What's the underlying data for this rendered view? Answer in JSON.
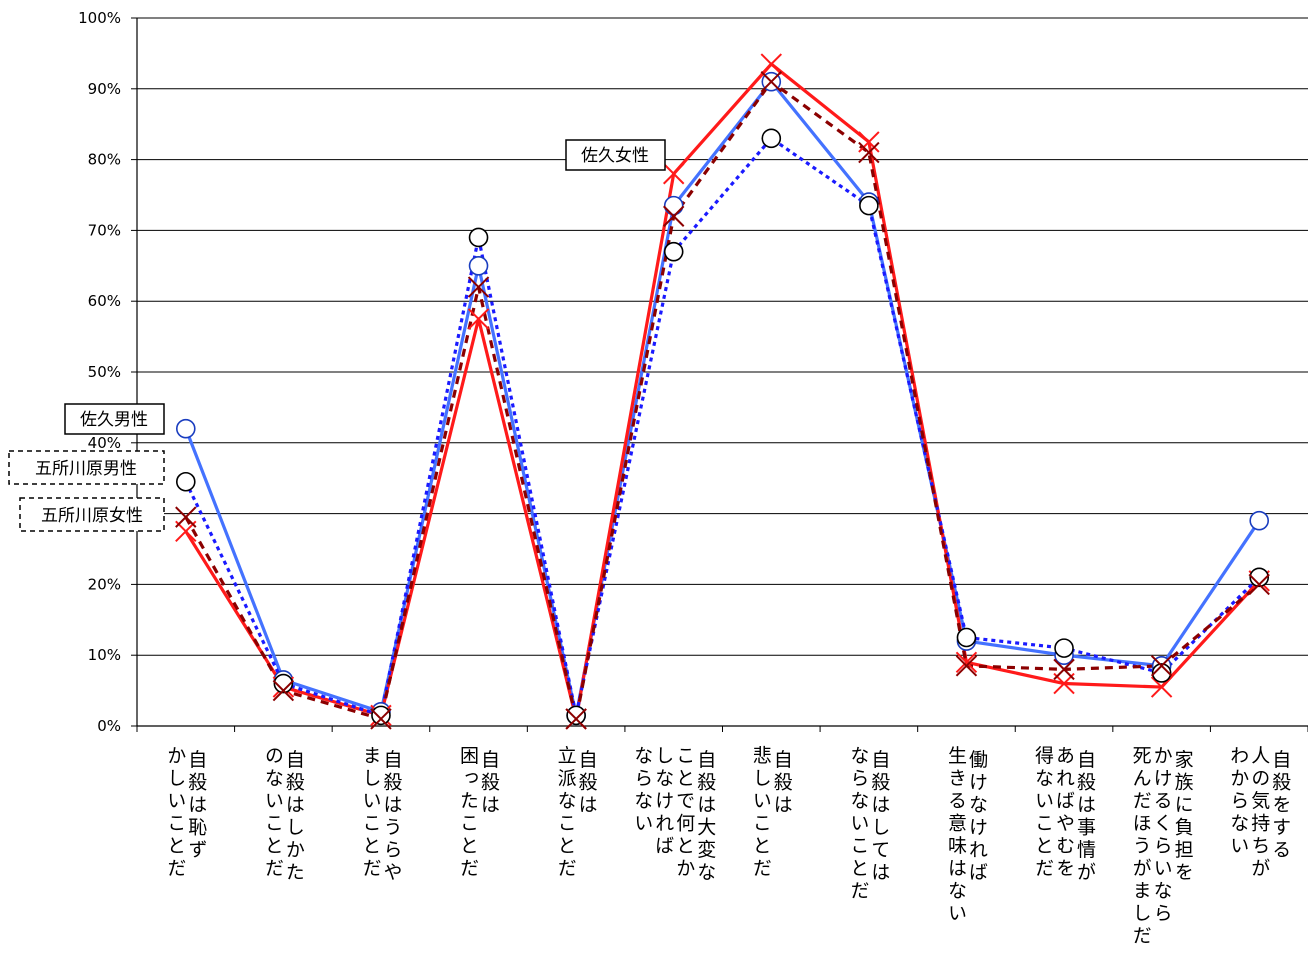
{
  "chart_data": {
    "type": "line",
    "title": "",
    "xlabel": "",
    "ylabel": "",
    "ylim": [
      0,
      100
    ],
    "y_tick_labels": [
      "0%",
      "10%",
      "20%",
      "30%",
      "40%",
      "50%",
      "60%",
      "70%",
      "80%",
      "90%",
      "100%"
    ],
    "grid": "horizontal",
    "categories": [
      [
        "自殺は恥ず",
        "かしいことだ"
      ],
      [
        "自殺はしかた",
        "のないことだ"
      ],
      [
        "自殺はうらや",
        "ましいことだ"
      ],
      [
        "自殺は",
        "困ったことだ"
      ],
      [
        "自殺は",
        "立派なことだ"
      ],
      [
        "自殺は大変な",
        "ことで何とか",
        "しなければ",
        "ならない"
      ],
      [
        "自殺は",
        "悲しいことだ"
      ],
      [
        "自殺はしては",
        "ならないことだ"
      ],
      [
        "働けなければ",
        "生きる意味はない"
      ],
      [
        "自殺は事情が",
        "あればやむを",
        "得ないことだ"
      ],
      [
        "家族に負担を",
        "かけるくらいなら",
        "死んだほうがましだ"
      ],
      [
        "自殺をする",
        "人の気持ちが",
        "わからない"
      ]
    ],
    "series": [
      {
        "name": "佐久男性",
        "color": "#4472ff",
        "dash": "solid",
        "marker": "circle",
        "values": [
          42,
          6.5,
          2,
          65,
          1.5,
          73.5,
          91,
          74,
          12,
          10,
          8.5,
          29
        ]
      },
      {
        "name": "佐久女性",
        "color": "#ff1a1a",
        "dash": "solid",
        "marker": "x",
        "values": [
          27.5,
          5.5,
          1.5,
          57.5,
          1,
          78,
          93.5,
          82.5,
          9,
          6,
          5.5,
          20.5
        ]
      },
      {
        "name": "五所川原男性",
        "color": "#1a1aff",
        "dash": "dotted",
        "marker": "circle",
        "values": [
          34.5,
          6,
          1.5,
          69,
          1.5,
          67,
          83,
          73.5,
          12.5,
          11,
          7.5,
          21
        ]
      },
      {
        "name": "五所川原女性",
        "color": "#8b0000",
        "dash": "dashed",
        "marker": "x",
        "values": [
          29.5,
          5,
          1,
          62,
          1,
          72,
          91,
          81,
          8.5,
          8,
          8.5,
          20
        ]
      }
    ],
    "series_tags": [
      "佐久男性",
      "佐久女性",
      "五所川原男性",
      "五所川原女性"
    ]
  }
}
